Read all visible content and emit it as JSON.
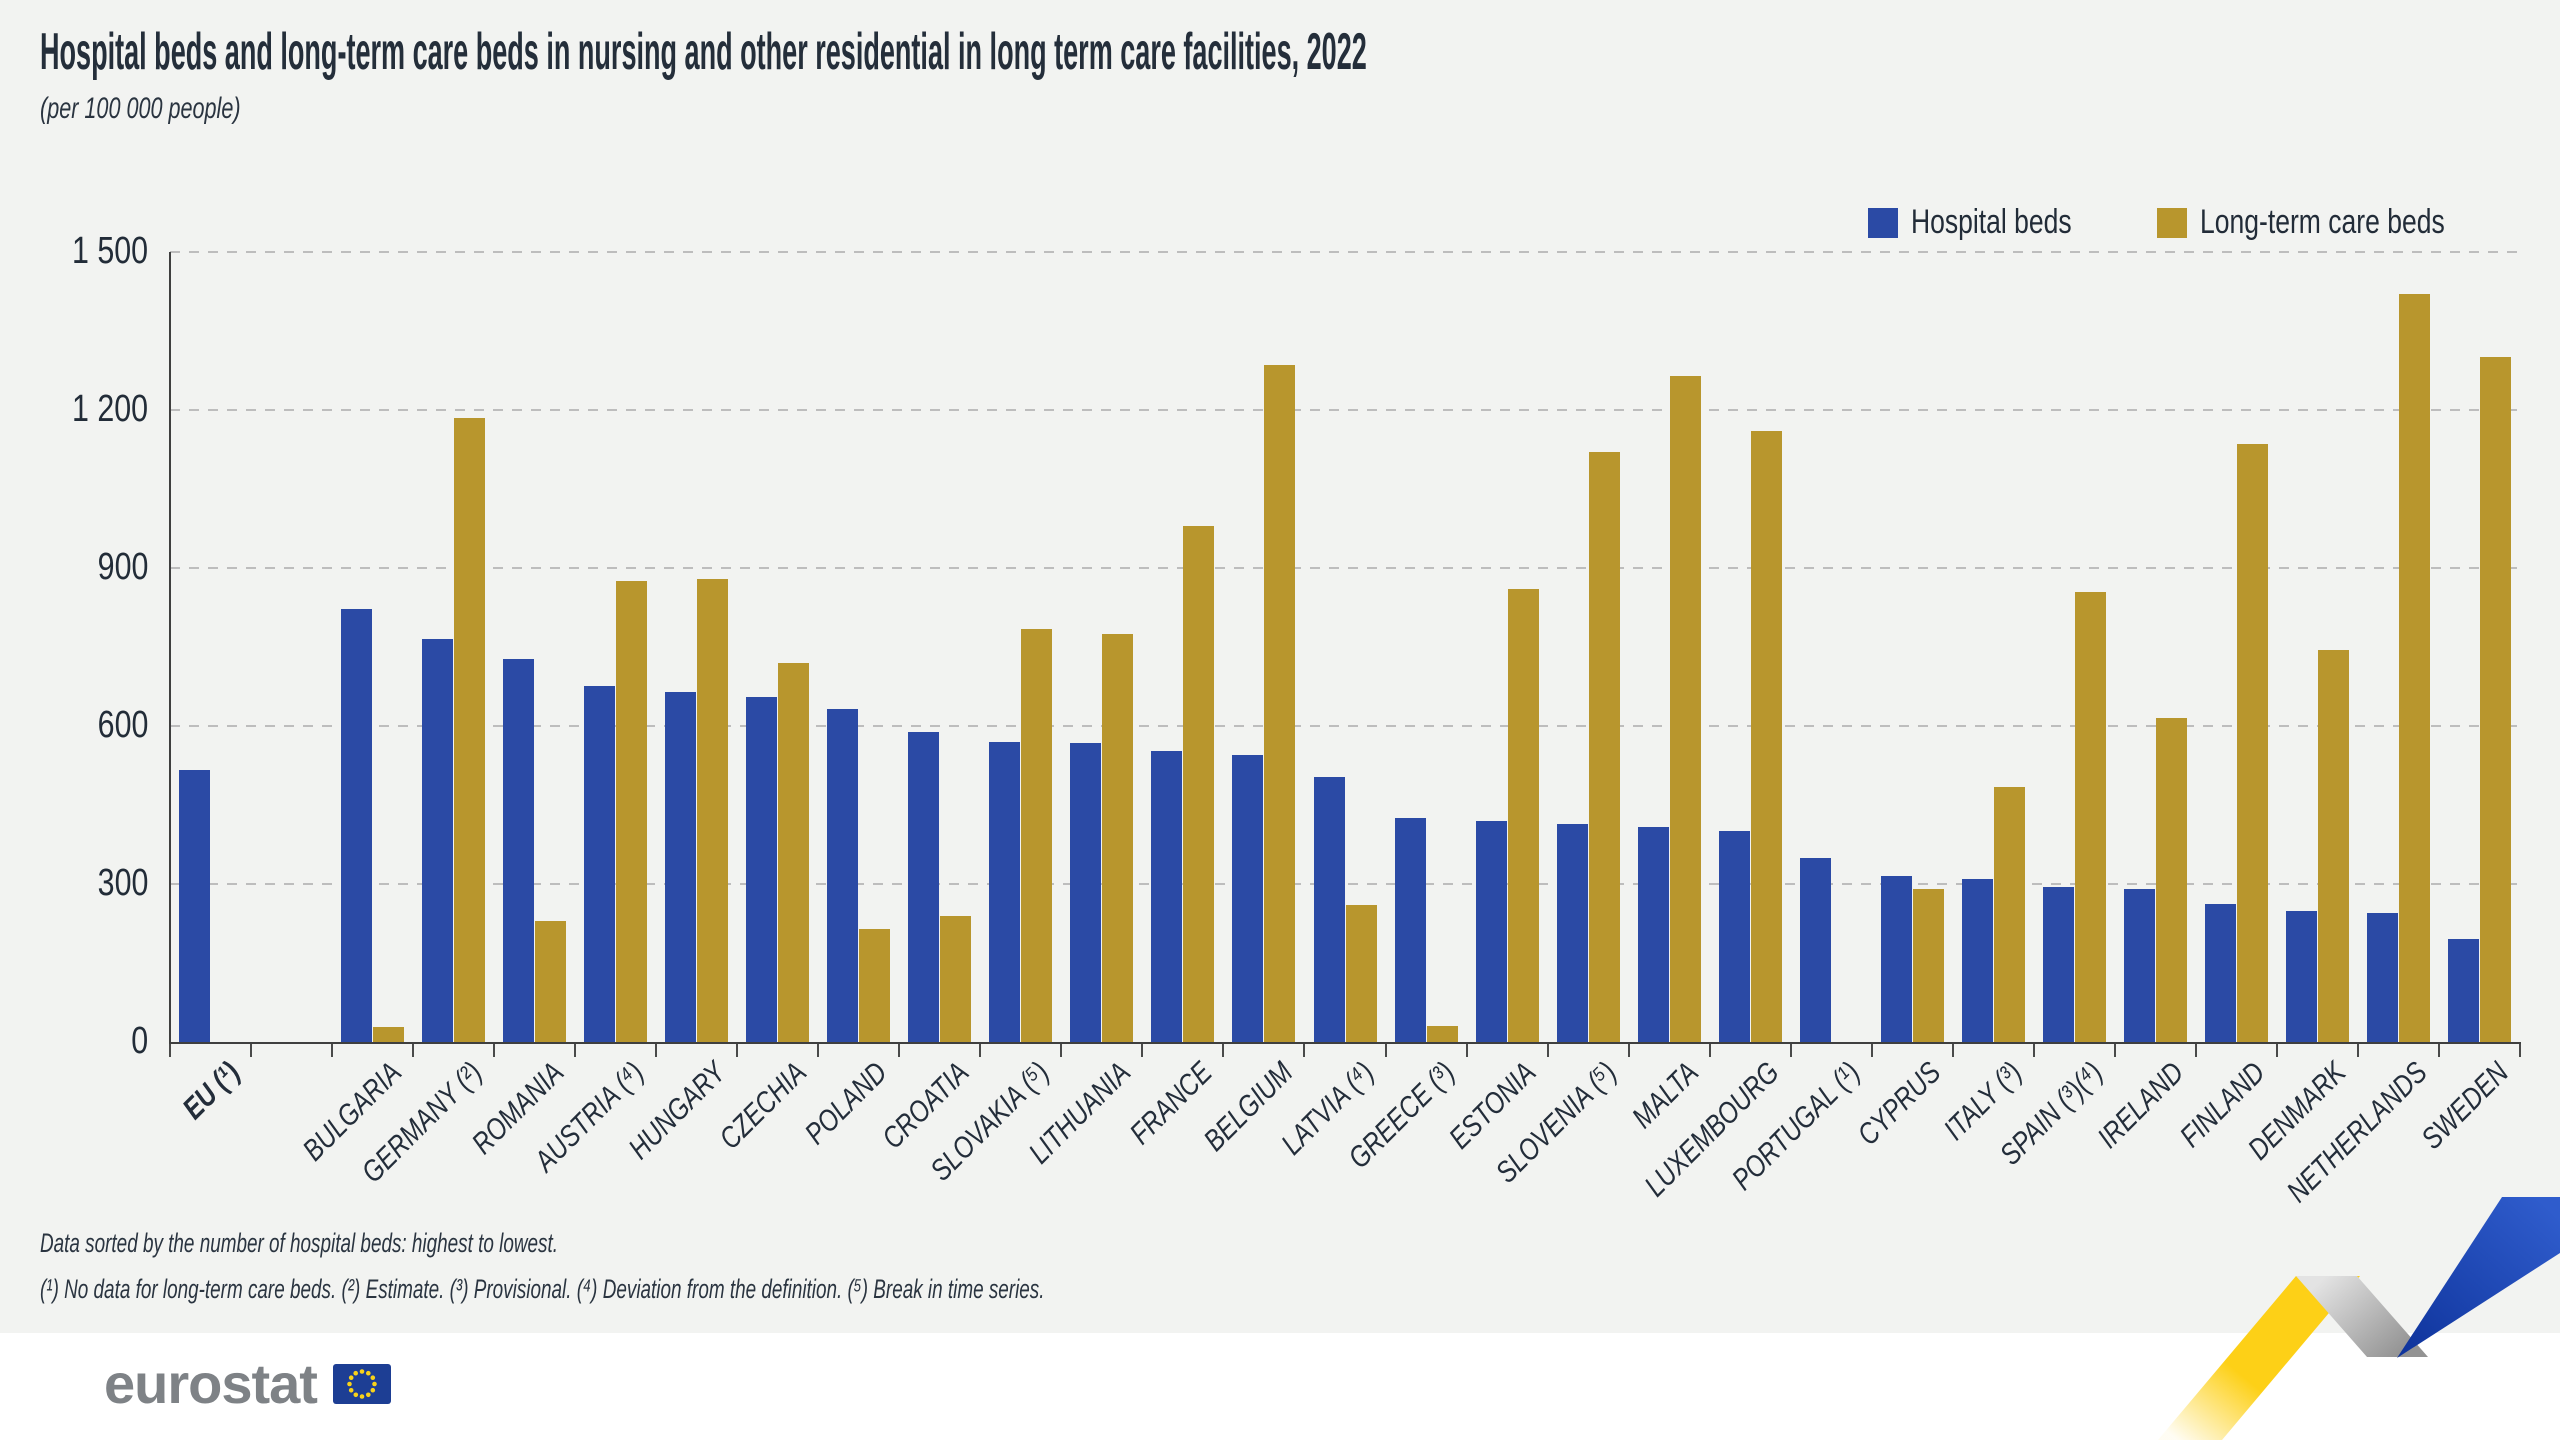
{
  "page": {
    "background": "#f2f3f1",
    "bottom_band": "#ffffff",
    "accent_text": "#232d39"
  },
  "footer": {
    "line1": "Data sorted by the number of hospital beds: highest to lowest.",
    "line2": "(¹) No data for long-term care beds. (²) Estimate. (³) Provisional. (⁴) Deviation from the definition. (⁵) Break in time series."
  },
  "logo": {
    "text": "eurostat",
    "flag_blue": "#1d3e94",
    "flag_star_yellow": "#f8d21a"
  },
  "ribbon_colors": {
    "yellow": "#fdd017",
    "gray": "#b5b5b5",
    "blue": "#1e45b0"
  },
  "chart_data": {
    "type": "bar",
    "title": "Hospital beds and long-term care beds in nursing and other residential in long term care facilities, 2022",
    "subtitle": "(per 100 000 people)",
    "ylim": [
      0,
      1500
    ],
    "yticks": [
      0,
      300,
      600,
      900,
      1200,
      1500
    ],
    "ytick_labels": [
      "0",
      "300",
      "600",
      "900",
      "1 200",
      "1 500"
    ],
    "grid": "horizontal-dashed",
    "legend_position": "top-right",
    "categories": [
      {
        "label": "EU (¹)",
        "bold": true
      },
      {
        "label": "",
        "spacer": true
      },
      {
        "label": "BULGARIA"
      },
      {
        "label": "GERMANY (²)"
      },
      {
        "label": "ROMANIA"
      },
      {
        "label": "AUSTRIA (⁴)"
      },
      {
        "label": "HUNGARY"
      },
      {
        "label": "CZECHIA"
      },
      {
        "label": "POLAND"
      },
      {
        "label": "CROATIA"
      },
      {
        "label": "SLOVAKIA (⁵)"
      },
      {
        "label": "LITHUANIA"
      },
      {
        "label": "FRANCE"
      },
      {
        "label": "BELGIUM"
      },
      {
        "label": "LATVIA (⁴)"
      },
      {
        "label": "GREECE (³)"
      },
      {
        "label": "ESTONIA"
      },
      {
        "label": "SLOVENIA (⁵)"
      },
      {
        "label": "MALTA"
      },
      {
        "label": "LUXEMBOURG"
      },
      {
        "label": "PORTUGAL (¹)"
      },
      {
        "label": "CYPRUS"
      },
      {
        "label": "ITALY (³)"
      },
      {
        "label": "SPAIN (³)(⁴)"
      },
      {
        "label": "IRELAND"
      },
      {
        "label": "FINLAND"
      },
      {
        "label": "DENMARK"
      },
      {
        "label": "NETHERLANDS"
      },
      {
        "label": "SWEDEN"
      }
    ],
    "series": [
      {
        "name": "Hospital beds",
        "color": "#2b4aa5",
        "values": [
          516,
          null,
          823,
          766,
          728,
          676,
          665,
          655,
          632,
          588,
          570,
          568,
          553,
          545,
          503,
          426,
          420,
          414,
          408,
          400,
          350,
          315,
          310,
          295,
          291,
          262,
          249,
          245,
          196
        ]
      },
      {
        "name": "Long-term care beds",
        "color": "#b8962d",
        "values": [
          null,
          null,
          28,
          1185,
          230,
          875,
          880,
          720,
          215,
          240,
          785,
          775,
          980,
          1285,
          260,
          30,
          860,
          1120,
          1265,
          1160,
          null,
          290,
          485,
          855,
          615,
          1135,
          745,
          1420,
          1300
        ]
      }
    ]
  }
}
